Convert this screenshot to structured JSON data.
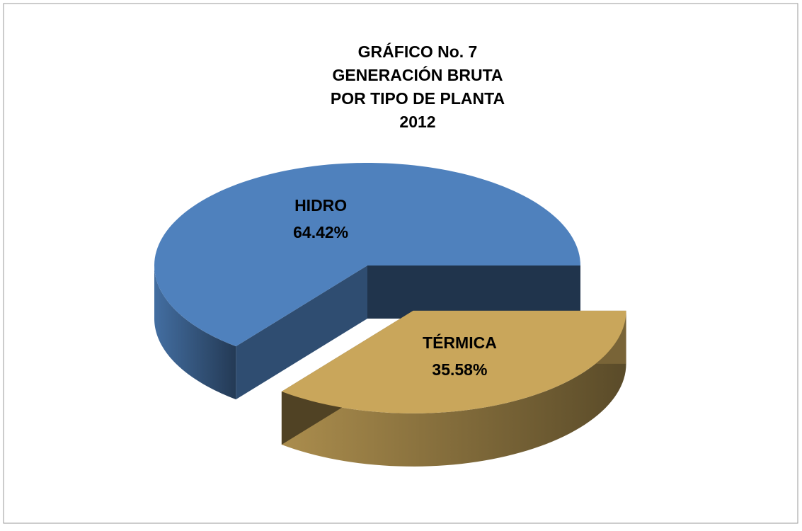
{
  "chart_data": {
    "type": "pie3d",
    "title": [
      "GRÁFICO No. 7",
      "GENERACIÓN BRUTA",
      "POR TIPO DE PLANTA",
      "2012"
    ],
    "categories": [
      "HIDRO",
      "TÉRMICA"
    ],
    "values": [
      64.42,
      35.58
    ],
    "value_labels": [
      "64.42%",
      "35.58%"
    ],
    "colors": [
      "#4f81bd",
      "#c9a65b"
    ],
    "exploded": [
      false,
      true
    ]
  }
}
